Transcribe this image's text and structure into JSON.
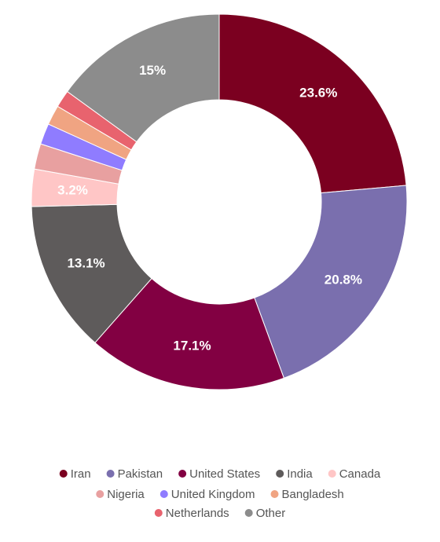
{
  "chart_data": {
    "type": "donut",
    "categories": [
      "Iran",
      "Pakistan",
      "United States",
      "India",
      "Canada",
      "Nigeria",
      "United Kingdom",
      "Bangladesh",
      "Netherlands",
      "Other"
    ],
    "values": [
      23.6,
      20.8,
      17.1,
      13.1,
      3.2,
      2.2,
      1.8,
      1.7,
      1.5,
      15
    ],
    "value_labels": [
      "23.6%",
      "20.8%",
      "17.1%",
      "13.1%",
      "3.2%",
      null,
      null,
      null,
      null,
      "15%"
    ],
    "colors": [
      "#7b0020",
      "#7a6fae",
      "#820042",
      "#5e5b5b",
      "#ffc6c6",
      "#e8a0a0",
      "#8f7cff",
      "#f0a482",
      "#e8636e",
      "#8c8c8c"
    ],
    "legend": "bottom"
  }
}
